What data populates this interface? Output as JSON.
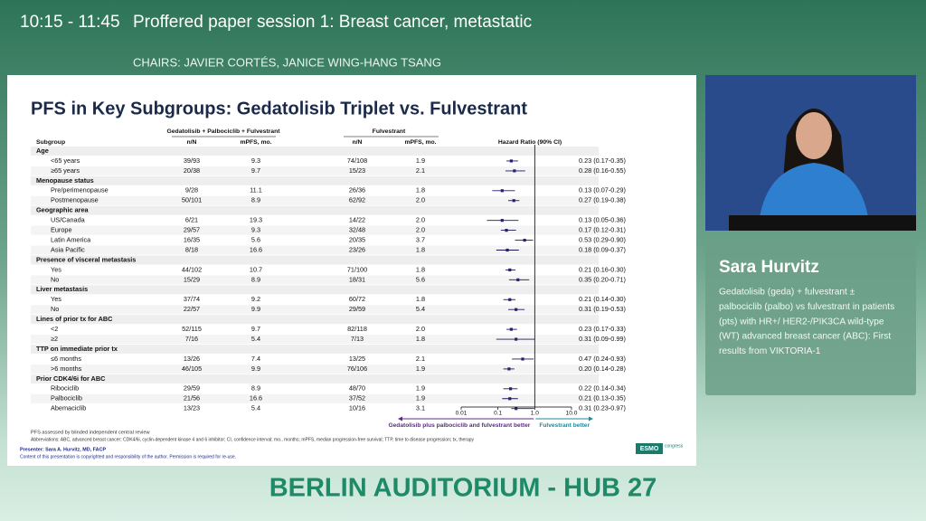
{
  "header": {
    "time": "10:15 - 11:45",
    "session": "Proffered paper session 1: Breast cancer, metastatic",
    "chairs": "CHAIRS: JAVIER CORTÉS, JANICE WING-HANG TSANG"
  },
  "slide": {
    "title": "PFS in Key Subgroups: Gedatolisib Triplet vs. Fulvestrant",
    "group_headers": [
      "Gedatolisib + Palbociclib + Fulvestrant",
      "Fulvestrant"
    ],
    "columns": [
      "Subgroup",
      "n/N",
      "mPFS, mo.",
      "n/N",
      "mPFS, mo.",
      "Hazard Ratio (90% CI)"
    ],
    "groups": [
      {
        "title": "Age",
        "rows": [
          {
            "label": "<65 years",
            "n1": "39/93",
            "m1": "9.3",
            "n2": "74/108",
            "m2": "1.9",
            "hr": 0.23,
            "lo": 0.17,
            "hi": 0.35,
            "ci": "0.23 (0.17-0.35)"
          },
          {
            "label": "≥65 years",
            "n1": "20/38",
            "m1": "9.7",
            "n2": "15/23",
            "m2": "2.1",
            "hr": 0.28,
            "lo": 0.16,
            "hi": 0.55,
            "ci": "0.28 (0.16-0.55)"
          }
        ]
      },
      {
        "title": "Menopause status",
        "rows": [
          {
            "label": "Pre/perimenopause",
            "n1": "9/28",
            "m1": "11.1",
            "n2": "26/36",
            "m2": "1.8",
            "hr": 0.13,
            "lo": 0.07,
            "hi": 0.29,
            "ci": "0.13 (0.07-0.29)"
          },
          {
            "label": "Postmenopause",
            "n1": "50/101",
            "m1": "8.9",
            "n2": "62/92",
            "m2": "2.0",
            "hr": 0.27,
            "lo": 0.19,
            "hi": 0.38,
            "ci": "0.27 (0.19-0.38)"
          }
        ]
      },
      {
        "title": "Geographic area",
        "rows": [
          {
            "label": "US/Canada",
            "n1": "6/21",
            "m1": "19.3",
            "n2": "14/22",
            "m2": "2.0",
            "hr": 0.13,
            "lo": 0.05,
            "hi": 0.36,
            "ci": "0.13 (0.05-0.36)"
          },
          {
            "label": "Europe",
            "n1": "29/57",
            "m1": "9.3",
            "n2": "32/48",
            "m2": "2.0",
            "hr": 0.17,
            "lo": 0.12,
            "hi": 0.31,
            "ci": "0.17 (0.12-0.31)"
          },
          {
            "label": "Latin America",
            "n1": "16/35",
            "m1": "5.6",
            "n2": "20/35",
            "m2": "3.7",
            "hr": 0.53,
            "lo": 0.29,
            "hi": 0.9,
            "ci": "0.53 (0.29-0.90)"
          },
          {
            "label": "Asia Pacific",
            "n1": "8/18",
            "m1": "16.6",
            "n2": "23/26",
            "m2": "1.8",
            "hr": 0.18,
            "lo": 0.09,
            "hi": 0.37,
            "ci": "0.18 (0.09-0.37)"
          }
        ]
      },
      {
        "title": "Presence of visceral metastasis",
        "rows": [
          {
            "label": "Yes",
            "n1": "44/102",
            "m1": "10.7",
            "n2": "71/100",
            "m2": "1.8",
            "hr": 0.21,
            "lo": 0.16,
            "hi": 0.3,
            "ci": "0.21 (0.16-0.30)"
          },
          {
            "label": "No",
            "n1": "15/29",
            "m1": "8.9",
            "n2": "18/31",
            "m2": "5.6",
            "hr": 0.35,
            "lo": 0.2,
            "hi": 0.71,
            "ci": "0.35 (0.20-0.71)"
          }
        ]
      },
      {
        "title": "Liver metastasis",
        "rows": [
          {
            "label": "Yes",
            "n1": "37/74",
            "m1": "9.2",
            "n2": "60/72",
            "m2": "1.8",
            "hr": 0.21,
            "lo": 0.14,
            "hi": 0.3,
            "ci": "0.21 (0.14-0.30)"
          },
          {
            "label": "No",
            "n1": "22/57",
            "m1": "9.9",
            "n2": "29/59",
            "m2": "5.4",
            "hr": 0.31,
            "lo": 0.19,
            "hi": 0.53,
            "ci": "0.31 (0.19-0.53)"
          }
        ]
      },
      {
        "title": "Lines of prior tx for ABC",
        "rows": [
          {
            "label": "<2",
            "n1": "52/115",
            "m1": "9.7",
            "n2": "82/118",
            "m2": "2.0",
            "hr": 0.23,
            "lo": 0.17,
            "hi": 0.33,
            "ci": "0.23 (0.17-0.33)"
          },
          {
            "label": "≥2",
            "n1": "7/16",
            "m1": "5.4",
            "n2": "7/13",
            "m2": "1.8",
            "hr": 0.31,
            "lo": 0.09,
            "hi": 0.99,
            "ci": "0.31 (0.09-0.99)"
          }
        ]
      },
      {
        "title": "TTP on immediate prior tx",
        "rows": [
          {
            "label": "≤6 months",
            "n1": "13/26",
            "m1": "7.4",
            "n2": "13/25",
            "m2": "2.1",
            "hr": 0.47,
            "lo": 0.24,
            "hi": 0.93,
            "ci": "0.47 (0.24-0.93)"
          },
          {
            "label": ">6 months",
            "n1": "46/105",
            "m1": "9.9",
            "n2": "76/106",
            "m2": "1.9",
            "hr": 0.2,
            "lo": 0.14,
            "hi": 0.28,
            "ci": "0.20 (0.14-0.28)"
          }
        ]
      },
      {
        "title": "Prior CDK4/6i for ABC",
        "rows": [
          {
            "label": "Ribociclib",
            "n1": "29/59",
            "m1": "8.9",
            "n2": "48/70",
            "m2": "1.9",
            "hr": 0.22,
            "lo": 0.14,
            "hi": 0.34,
            "ci": "0.22 (0.14-0.34)"
          },
          {
            "label": "Palbociclib",
            "n1": "21/56",
            "m1": "16.6",
            "n2": "37/52",
            "m2": "1.9",
            "hr": 0.21,
            "lo": 0.13,
            "hi": 0.35,
            "ci": "0.21 (0.13-0.35)"
          },
          {
            "label": "Abemaciclib",
            "n1": "13/23",
            "m1": "5.4",
            "n2": "10/16",
            "m2": "3.1",
            "hr": 0.31,
            "lo": 0.23,
            "hi": 0.97,
            "ci": "0.31 (0.23-0.97)"
          }
        ]
      }
    ],
    "xlim": [
      0.01,
      10
    ],
    "log": true,
    "xticks": [
      0.01,
      0.1,
      {
        "value": 1,
        "label": "1.0"
      },
      {
        "value": 10,
        "label": "10.0"
      }
    ],
    "legend_left": "Gedatolisib plus palbociclib and fulvestrant better",
    "legend_right": "Fulvestrant better",
    "footnotes": [
      "PFS assessed by blinded independent central review",
      "Abbreviations: ABC, advanced breast cancer; CDK4/6i, cyclin-dependent kinase 4 and 6 inhibitor; CI, confidence interval; mo., months; mPFS, median progression-free survival; TTP, time to disease progression; tx, therapy"
    ],
    "presenter": "Presenter: Sara A. Hurvitz, MD, FACP",
    "copyright": "Content of this presentation is copyrighted and responsibility of the author. Permission is required for re-use.",
    "logo": [
      "ESMO",
      "congress"
    ]
  },
  "speaker": {
    "name": "Sara Hurvitz",
    "description": [
      "Gedatolisib (geda) + fulvestrant ±",
      "palbociclib (palbo) vs fulvestrant in patients",
      "(pts) with HR+/ HER2-/PIK3CA wild-type",
      "(WT) advanced breast cancer (ABC): First",
      "results from VIKTORIA-1"
    ]
  },
  "room": "BERLIN AUDITORIUM - HUB 27"
}
